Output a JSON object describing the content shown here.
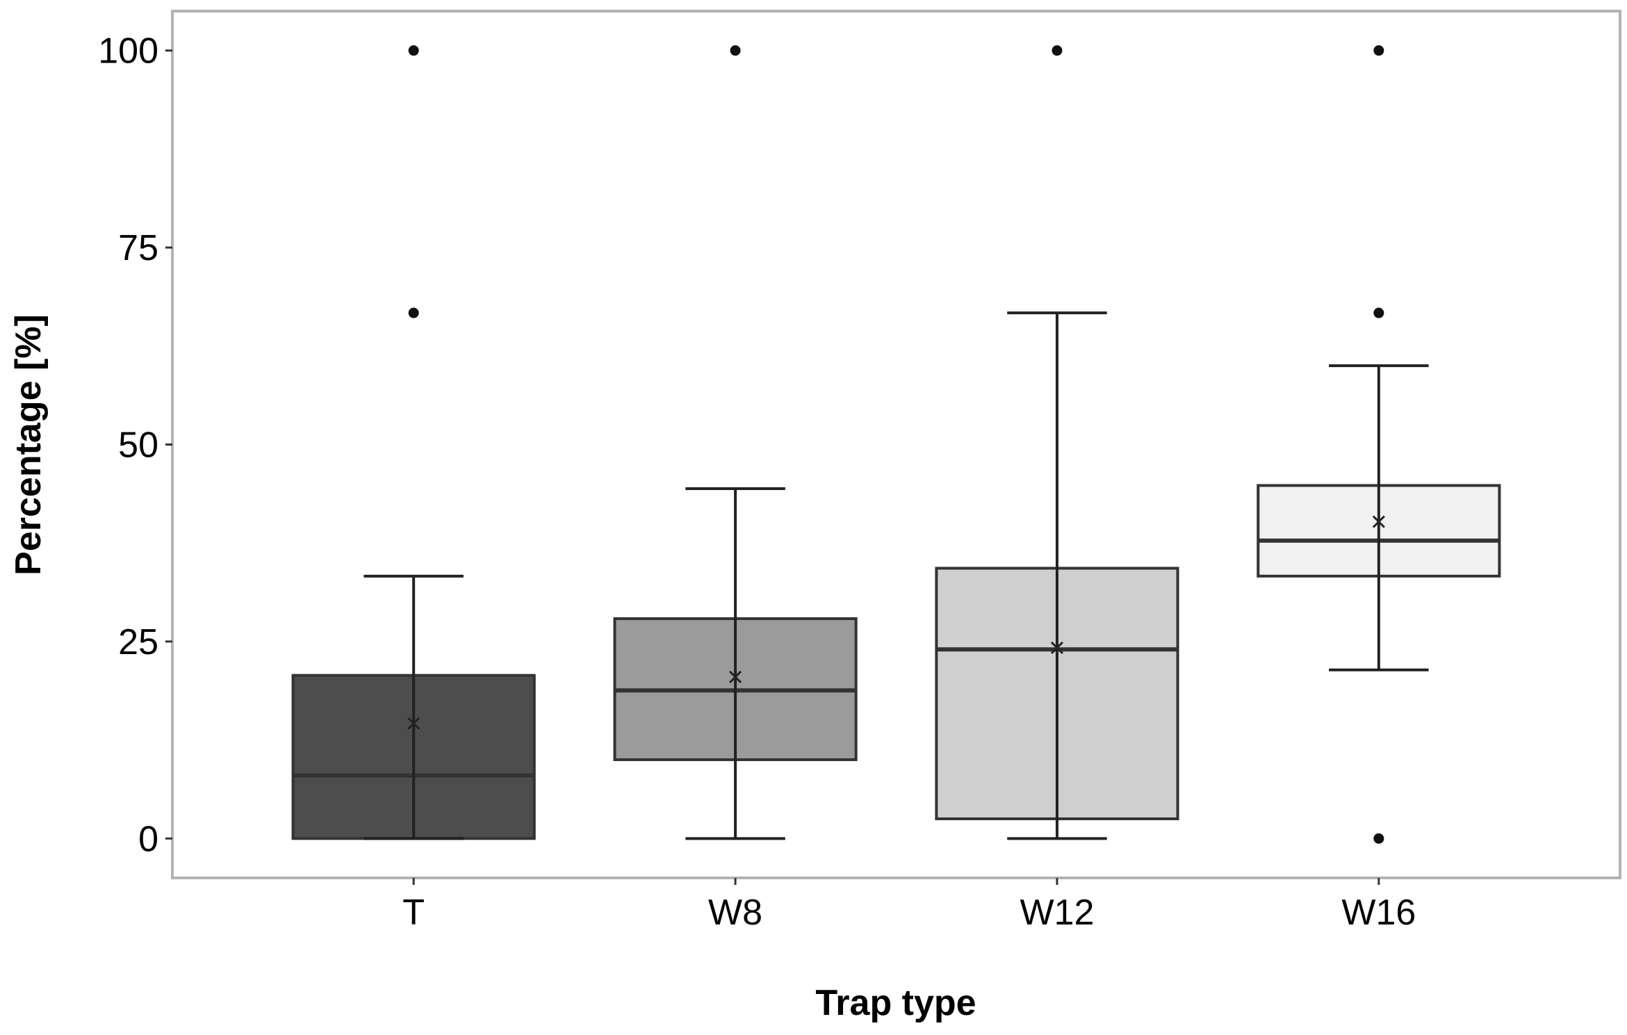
{
  "chart_data": {
    "type": "boxplot",
    "title": "",
    "xlabel": "Trap type",
    "ylabel": "Percentage [%]",
    "ylim": [
      -5,
      105
    ],
    "yticks": [
      0,
      25,
      50,
      75,
      100
    ],
    "yticks_label": [
      "0",
      "25",
      "50",
      "75",
      "100"
    ],
    "grid": false,
    "legend": "none",
    "categories": [
      "T",
      "W8",
      "W12",
      "W16"
    ],
    "boxes": [
      {
        "category": "T",
        "whisker_low": 0,
        "q1": 0,
        "median": 8,
        "q3": 20.7,
        "whisker_high": 33.3,
        "mean": 14.6,
        "outliers": [
          66.7,
          100
        ],
        "fill": "#4d4d4d"
      },
      {
        "category": "W8",
        "whisker_low": 0,
        "q1": 10,
        "median": 18.8,
        "q3": 27.9,
        "whisker_high": 44.4,
        "mean": 20.5,
        "outliers": [
          100
        ],
        "fill": "#9b9b9b"
      },
      {
        "category": "W12",
        "whisker_low": 0,
        "q1": 2.5,
        "median": 24,
        "q3": 34.3,
        "whisker_high": 66.7,
        "mean": 24.2,
        "outliers": [
          100
        ],
        "fill": "#cfcfcf"
      },
      {
        "category": "W16",
        "whisker_low": 21.4,
        "q1": 33.3,
        "median": 37.8,
        "q3": 44.8,
        "whisker_high": 60,
        "mean": 40.2,
        "outliers": [
          0,
          66.7,
          100
        ],
        "fill": "#f1f1f1"
      }
    ]
  }
}
